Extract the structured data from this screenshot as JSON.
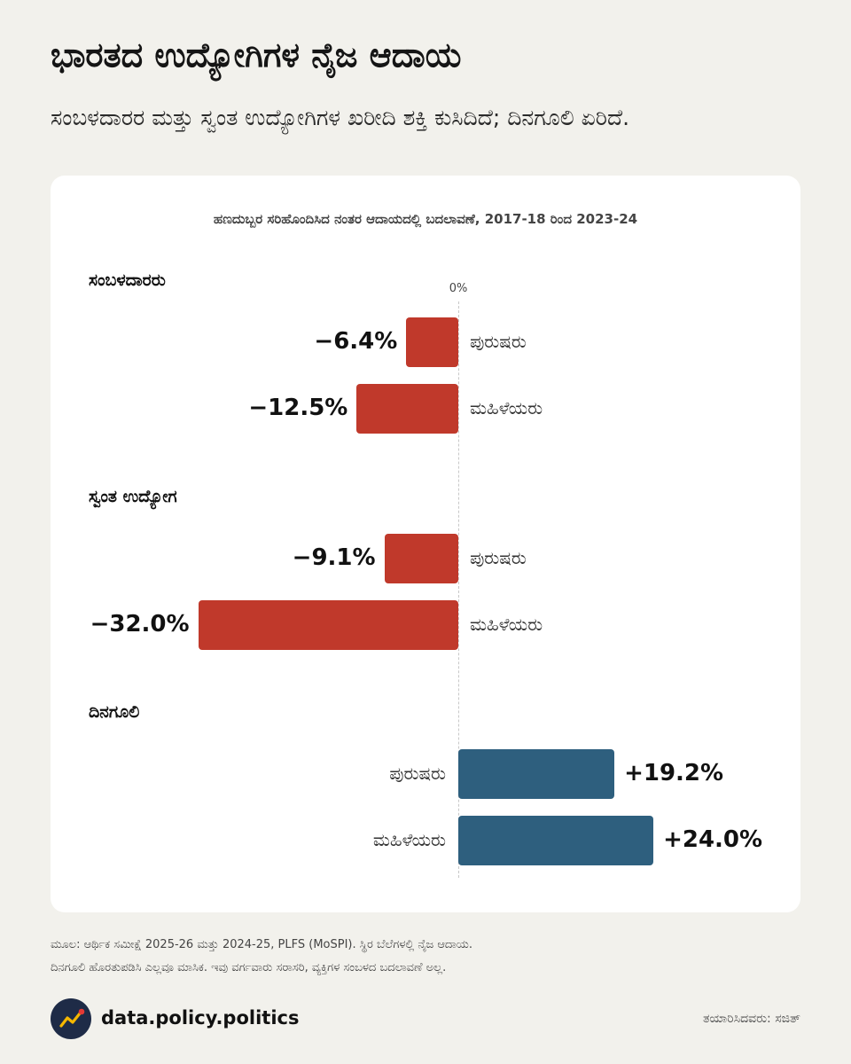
{
  "header": {
    "title": "ಭಾರತದ ಉದ್ಯೋಗಿಗಳ ನೈಜ ಆದಾಯ",
    "subtitle": "ಸಂಬಳದಾರರ ಮತ್ತು ಸ್ವಂತ ಉದ್ಯೋಗಿಗಳ ಖರೀದಿ ಶಕ್ತಿ ಕುಸಿದಿದೆ; ದಿನಗೂಲಿ ಏರಿದೆ."
  },
  "chart_data": {
    "type": "bar",
    "orientation": "horizontal",
    "title": "ಹಣದುಬ್ಬರ ಸರಿಹೊಂದಿಸಿದ ನಂತರ ಆದಾಯದಲ್ಲಿ ಬದಲಾವಣೆ, 2017-18 ರಿಂದ 2023-24",
    "zero_label": "0%",
    "unit": "%",
    "xlim": [
      -32.0,
      24.0
    ],
    "colors": {
      "negative": "#c0392b",
      "positive": "#2e5f7e"
    },
    "groups": [
      {
        "label": "ಸಂಬಳದಾರರು",
        "bars": [
          {
            "category": "ಪುರುಷರು",
            "value": -6.4,
            "display": "−6.4%"
          },
          {
            "category": "ಮಹಿಳೆಯರು",
            "value": -12.5,
            "display": "−12.5%"
          }
        ]
      },
      {
        "label": "ಸ್ವಂತ ಉದ್ಯೋಗ",
        "bars": [
          {
            "category": "ಪುರುಷರು",
            "value": -9.1,
            "display": "−9.1%"
          },
          {
            "category": "ಮಹಿಳೆಯರು",
            "value": -32.0,
            "display": "−32.0%"
          }
        ]
      },
      {
        "label": "ದಿನಗೂಲಿ",
        "bars": [
          {
            "category": "ಪುರುಷರು",
            "value": 19.2,
            "display": "+19.2%"
          },
          {
            "category": "ಮಹಿಳೆಯರು",
            "value": 24.0,
            "display": "+24.0%"
          }
        ]
      }
    ]
  },
  "footer": {
    "source_line1": "ಮೂಲ: ಆರ್ಥಿಕ ಸಮೀಕ್ಷೆ 2025-26 ಮತ್ತು 2024-25, PLFS (MoSPI). ಸ್ಥಿರ ಬೆಲೆಗಳಲ್ಲಿ ನೈಜ ಆದಾಯ.",
    "source_line2": "ದಿನಗೂಲಿ ಹೊರತುಪಡಿಸಿ ಎಲ್ಲವೂ ಮಾಸಿಕ. ಇವು ವರ್ಗವಾರು ಸರಾಸರಿ, ವ್ಯಕ್ತಿಗಳ ಸಂಬಳದ ಬದಲಾವಣೆ ಅಲ್ಲ.",
    "brand": "data.policy.politics",
    "credit": "ತಯಾರಿಸಿದವರು: ಸಜಿತ್",
    "logo_icon": "trend-up-chart-icon"
  }
}
